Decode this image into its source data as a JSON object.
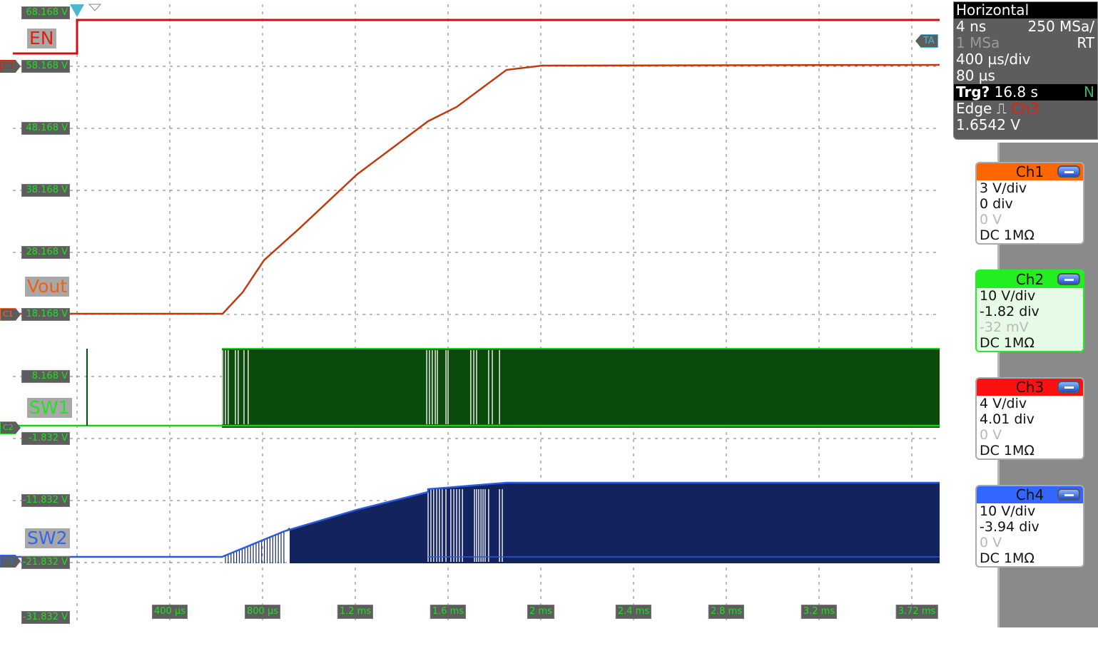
{
  "chart_data": {
    "type": "line",
    "title": "",
    "xlabel": "",
    "ylabel": "",
    "xlim_ms": [
      -0.277,
      3.72
    ],
    "ylim": [
      -31.832,
      68.168
    ],
    "grid": true,
    "x_ticks": [
      "400 µs",
      "800 µs",
      "1.2 ms",
      "1.6 ms",
      "2 ms",
      "2.4 ms",
      "2.8 ms",
      "3.2 ms",
      "3.72 ms"
    ],
    "x_tick_values_ms": [
      0.4,
      0.8,
      1.2,
      1.6,
      2.0,
      2.4,
      2.8,
      3.2,
      3.72
    ],
    "y_ticks": [
      "68.168 V",
      "58.168 V",
      "48.168 V",
      "38.168 V",
      "28.168 V",
      "18.168 V",
      "8.168 V",
      "-1.832 V",
      "-11.832 V",
      "-21.832 V",
      "-31.832 V"
    ],
    "y_tick_values": [
      68.168,
      58.168,
      48.168,
      38.168,
      28.168,
      18.168,
      8.168,
      -1.832,
      -11.832,
      -21.832,
      -31.832
    ],
    "series": [
      {
        "name": "EN",
        "channel": "C3",
        "color": "#d01010",
        "x": [
          -0.277,
          0,
          0,
          3.72
        ],
        "y": [
          60.24,
          60.24,
          65.64,
          65.64
        ]
      },
      {
        "name": "Vout",
        "channel": "C1",
        "color": "#c03a10",
        "x": [
          -0.277,
          0.628,
          0.714,
          0.806,
          0.96,
          1.206,
          1.514,
          1.637,
          1.852,
          2.006,
          3.72
        ],
        "y": [
          18.28,
          18.28,
          21.73,
          26.9,
          32.07,
          40.7,
          49.32,
          51.62,
          57.59,
          58.28,
          58.4
        ]
      },
      {
        "name": "SW1",
        "channel": "C2",
        "color": "#16d016",
        "fill": "#0a4a0a",
        "baseline": 0.24,
        "high": 12.65,
        "burst_start_ms": 0.625,
        "spike_ms": 0.043,
        "gaps_ms": [
          0.628,
          0.64,
          0.652,
          0.683,
          0.695,
          0.72,
          0.738,
          1.508,
          1.52,
          1.532,
          1.545,
          1.554,
          1.591,
          1.6,
          1.698,
          1.711,
          1.723,
          1.775,
          1.791,
          1.822
        ]
      },
      {
        "name": "SW2",
        "channel": "C4",
        "color": "#2a5ae0",
        "fill": "#13235e",
        "baseline": -20.91,
        "low": -21.95,
        "envelope_x": [
          0.625,
          0.895,
          1.206,
          1.514,
          1.514,
          1.852,
          3.72
        ],
        "envelope_y": [
          -20.91,
          -16.77,
          -13.33,
          -10.45,
          -10.0,
          -8.96,
          -8.96
        ],
        "dense_start_ms": 0.917,
        "gaps_ms": [
          1.514,
          1.526,
          1.538,
          1.551,
          1.563,
          1.575,
          1.591,
          1.612,
          1.625,
          1.637,
          1.649,
          1.662,
          1.714,
          1.723,
          1.732,
          1.742,
          1.751,
          1.76,
          1.775,
          1.822,
          1.834
        ]
      }
    ]
  },
  "channel_labels": {
    "en": "EN",
    "vout": "Vout",
    "sw1": "SW1",
    "sw2": "SW2"
  },
  "markers": {
    "c3": "C3",
    "c1": "C1",
    "c2": "C2",
    "c4": "C4",
    "ta": "TA"
  },
  "marker_value_suffix": "168 V",
  "horizontal": {
    "title": "Horizontal",
    "resolution": "4 ns",
    "sample_rate": "250 MSa/",
    "points": "1 MSa",
    "mode": "RT",
    "timebase": "400 µs/div",
    "position": "80 µs",
    "trigger_label": "Trg?",
    "trigger_time": "16.8 s",
    "trigger_mode": "N",
    "trigger_type": "Edge",
    "trigger_source": "Ch3",
    "trigger_level": "1.6542 V"
  },
  "channels": [
    {
      "name": "Ch1",
      "scale": "3 V/div",
      "offset_div": "0 div",
      "offset_v": "0 V",
      "coupling": "DC 1MΩ",
      "color": "#ff6600",
      "bg": "#ffffff"
    },
    {
      "name": "Ch2",
      "scale": "10 V/div",
      "offset_div": "-1.82 div",
      "offset_v": "-32 mV",
      "coupling": "DC 1MΩ",
      "color": "#22ee22",
      "bg": "#e6fbe6"
    },
    {
      "name": "Ch3",
      "scale": "4 V/div",
      "offset_div": "4.01 div",
      "offset_v": "0 V",
      "coupling": "DC 1MΩ",
      "color": "#ff1010",
      "bg": "#ffffff"
    },
    {
      "name": "Ch4",
      "scale": "10 V/div",
      "offset_div": "-3.94 div",
      "offset_v": "0 V",
      "coupling": "DC 1MΩ",
      "color": "#3366ff",
      "bg": "#ffffff"
    }
  ]
}
